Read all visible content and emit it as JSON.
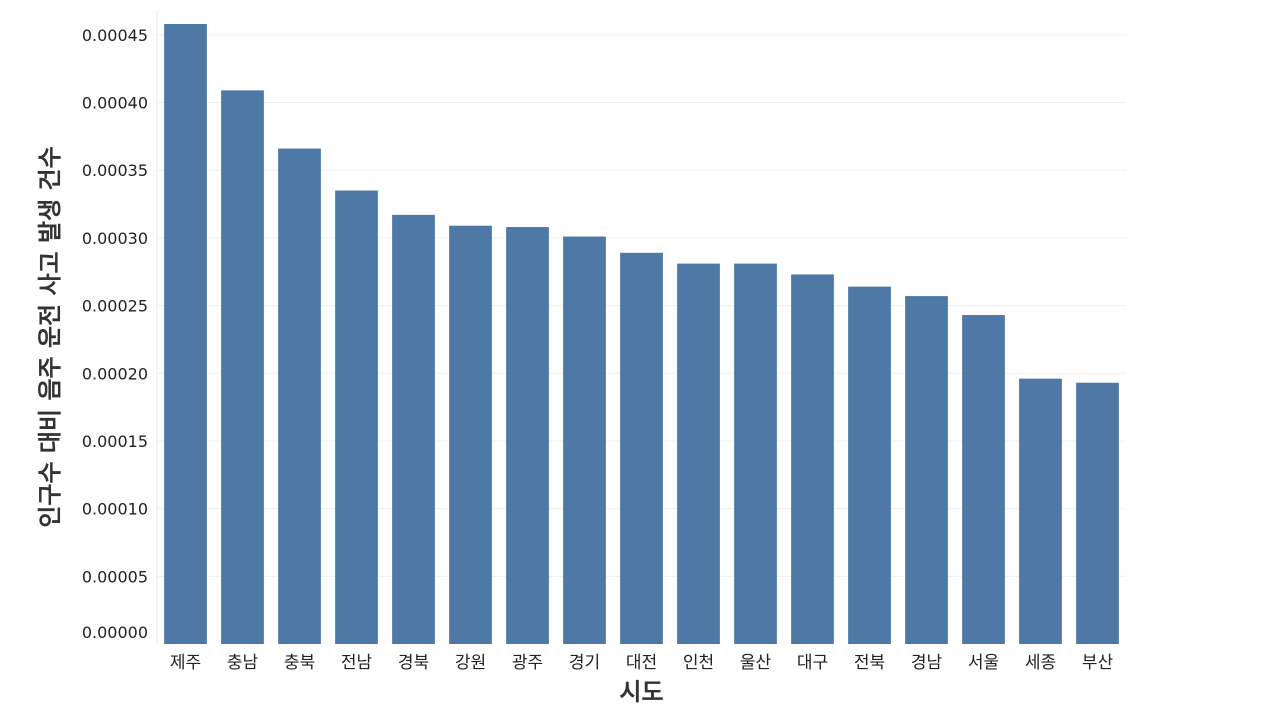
{
  "chart_data": {
    "type": "bar",
    "xlabel": "시도",
    "ylabel": "인구수 대비 음주 운전 사고 발생 건수",
    "categories": [
      "제주",
      "충남",
      "충북",
      "전남",
      "경북",
      "강원",
      "광주",
      "경기",
      "대전",
      "인천",
      "울산",
      "대구",
      "전북",
      "경남",
      "서울",
      "세종",
      "부산"
    ],
    "values": [
      0.000458,
      0.000409,
      0.000366,
      0.000335,
      0.000317,
      0.000309,
      0.000308,
      0.000301,
      0.000289,
      0.000281,
      0.000281,
      0.000273,
      0.000264,
      0.000257,
      0.000243,
      0.000196,
      0.000193
    ],
    "yticks": [
      "0.00000",
      "0.00005",
      "0.00010",
      "0.00015",
      "0.00020",
      "0.00025",
      "0.00030",
      "0.00035",
      "0.00040",
      "0.00045"
    ],
    "ylim": [
      0,
      0.000458
    ],
    "grid": true,
    "bar_color": "#4e79a7",
    "grid_color": "#f0f0f0"
  }
}
